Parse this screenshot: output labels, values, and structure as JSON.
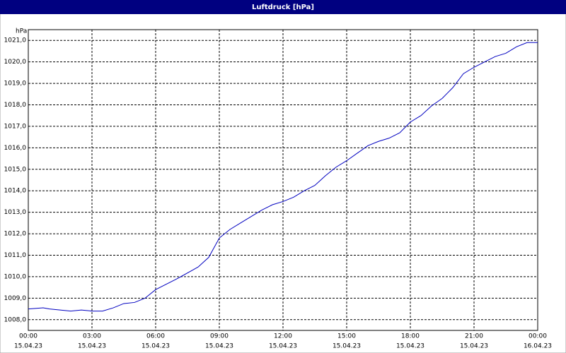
{
  "chart_data": {
    "type": "line",
    "title": "Luftdruck [hPa]",
    "ylabel": "hPa",
    "x": [
      0,
      0.7,
      1,
      2,
      2.5,
      3,
      3.5,
      4,
      4.5,
      5,
      5.5,
      6,
      7,
      8,
      8.5,
      9,
      9.5,
      10,
      11,
      11.5,
      12,
      12.5,
      13,
      13.5,
      14,
      14.5,
      15,
      15.5,
      16,
      16.5,
      17,
      17.5,
      18,
      18.5,
      19,
      19.5,
      20,
      20.5,
      21,
      21.5,
      22,
      22.5,
      23,
      23.5,
      24
    ],
    "series": [
      {
        "name": "Luftdruck",
        "color": "#0000c0",
        "values": [
          1008.5,
          1008.55,
          1008.5,
          1008.4,
          1008.45,
          1008.4,
          1008.4,
          1008.55,
          1008.75,
          1008.8,
          1009.0,
          1009.4,
          1009.9,
          1010.45,
          1010.9,
          1011.8,
          1012.2,
          1012.5,
          1013.1,
          1013.35,
          1013.5,
          1013.7,
          1014.0,
          1014.25,
          1014.7,
          1015.1,
          1015.4,
          1015.75,
          1016.1,
          1016.3,
          1016.45,
          1016.7,
          1017.2,
          1017.5,
          1017.95,
          1018.3,
          1018.8,
          1019.45,
          1019.75,
          1020.0,
          1020.25,
          1020.4,
          1020.7,
          1020.9,
          1020.9
        ]
      }
    ],
    "xlim": [
      0,
      24
    ],
    "xticks": [
      {
        "value": 0,
        "label": "00:00"
      },
      {
        "value": 3,
        "label": "03:00"
      },
      {
        "value": 6,
        "label": "06:00"
      },
      {
        "value": 9,
        "label": "09:00"
      },
      {
        "value": 12,
        "label": "12:00"
      },
      {
        "value": 15,
        "label": "15:00"
      },
      {
        "value": 18,
        "label": "18:00"
      },
      {
        "value": 21,
        "label": "21:00"
      },
      {
        "value": 24,
        "label": "00:00"
      }
    ],
    "xtick_dates": [
      "15.04.23",
      "15.04.23",
      "15.04.23",
      "15.04.23",
      "15.04.23",
      "15.04.23",
      "15.04.23",
      "15.04.23",
      "16.04.23"
    ],
    "ylim": [
      1007.5,
      1021.5
    ],
    "yticks": [
      {
        "value": 1008,
        "label": "1008,0"
      },
      {
        "value": 1009,
        "label": "1009,0"
      },
      {
        "value": 1010,
        "label": "1010,0"
      },
      {
        "value": 1011,
        "label": "1011,0"
      },
      {
        "value": 1012,
        "label": "1012,0"
      },
      {
        "value": 1013,
        "label": "1013,0"
      },
      {
        "value": 1014,
        "label": "1014,0"
      },
      {
        "value": 1015,
        "label": "1015,0"
      },
      {
        "value": 1016,
        "label": "1016,0"
      },
      {
        "value": 1017,
        "label": "1017,0"
      },
      {
        "value": 1018,
        "label": "1018,0"
      },
      {
        "value": 1019,
        "label": "1019,0"
      },
      {
        "value": 1020,
        "label": "1020,0"
      },
      {
        "value": 1021,
        "label": "1021,0"
      }
    ],
    "grid": true
  }
}
